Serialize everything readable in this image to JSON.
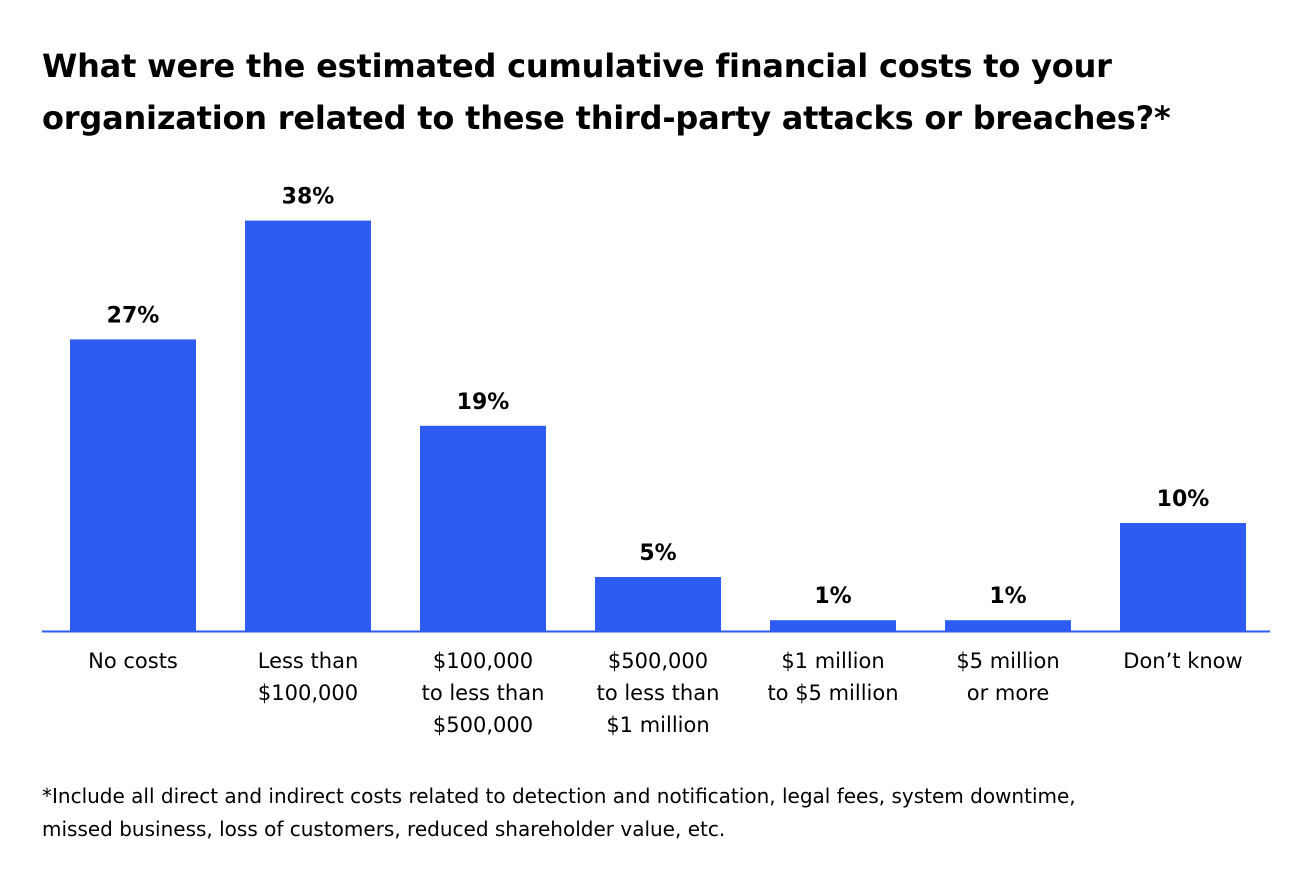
{
  "title_lines": [
    "What were the estimated cumulative financial costs to your",
    "organization related to these third-party attacks or breaches?*"
  ],
  "footnote_lines": [
    "*Include all direct and indirect costs related to detection and notification, legal fees, system downtime,",
    "missed business, loss of customers, reduced shareholder value, etc."
  ],
  "colors": {
    "bar": "#2e5bf2",
    "axis": "#2e5bf2",
    "text": "#000000"
  },
  "chart_data": {
    "type": "bar",
    "title": "What were the estimated cumulative financial costs to your organization related to these third-party attacks or breaches?*",
    "xlabel": "",
    "ylabel": "",
    "ylim": [
      0,
      40
    ],
    "grid": false,
    "categories": [
      [
        "No costs"
      ],
      [
        "Less than",
        "$100,000"
      ],
      [
        "$100,000",
        "to less than",
        "$500,000"
      ],
      [
        "$500,000",
        "to less than",
        "$1 million"
      ],
      [
        "$1 million",
        "to $5 million"
      ],
      [
        "$5 million",
        "or more"
      ],
      [
        "Don’t know"
      ]
    ],
    "values": [
      27,
      38,
      19,
      5,
      1,
      1,
      10
    ],
    "data_labels": [
      "27%",
      "38%",
      "19%",
      "5%",
      "1%",
      "1%",
      "10%"
    ]
  }
}
